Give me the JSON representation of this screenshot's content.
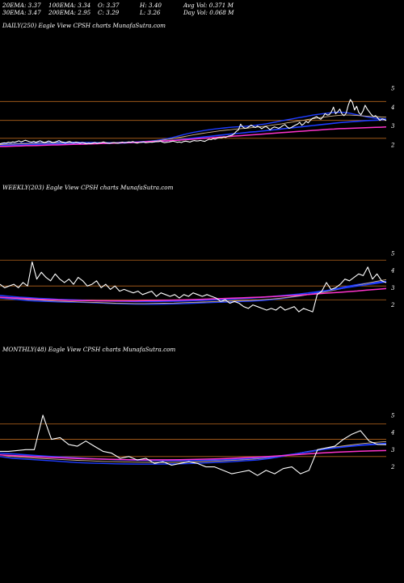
{
  "header": {
    "ema20": "20EMA: 3.37",
    "ema100": "100EMA: 3.34",
    "open": "O: 3.37",
    "high": "H: 3.40",
    "avg_vol": "Avg Vol: 0.371 M",
    "ema30": "30EMA: 3.47",
    "ema200": "200EMA: 2.95",
    "close": "C: 3.29",
    "low": "L: 3.26",
    "day_vol": "Day Vol: 0.068 M"
  },
  "panels": [
    {
      "title": "DAILY(250) Eagle   View  CPSH charts MunafaSutra.com"
    },
    {
      "title": "WEEKLY(203) Eagle   View  CPSH charts MunafaSutra.com"
    },
    {
      "title": "MONTHLY(48) Eagle   View  CPSH charts MunafaSutra.com"
    }
  ],
  "colors": {
    "background": "#000000",
    "price": "#ffffff",
    "grid_lines": "#b5651d",
    "ema_fast": "#1e3cff",
    "ema_200": "#ff33cc",
    "ema_mid": "#d2b48c"
  },
  "chart_data": [
    {
      "type": "line",
      "title": "DAILY(250) Eagle   View  CPSH charts MunafaSutra.com",
      "yticks": [
        "5",
        "4",
        "3",
        "2"
      ],
      "ylim": [
        1.1,
        5.6
      ],
      "reference_levels": [
        4.3,
        3.3,
        2.35
      ],
      "x_count": 100,
      "series": [
        {
          "role": "price",
          "values": [
            2.06,
            2.09,
            2.11,
            2.1,
            2.14,
            2.12,
            2.16,
            2.14,
            2.18,
            2.22,
            2.16,
            2.2,
            2.25,
            2.21,
            2.17,
            2.15,
            2.19,
            2.14,
            2.18,
            2.22,
            2.17,
            2.13,
            2.16,
            2.21,
            2.18,
            2.12,
            2.15,
            2.19,
            2.23,
            2.17,
            2.14,
            2.1,
            2.16,
            2.18,
            2.13,
            2.11,
            2.15,
            2.12,
            2.09,
            2.13,
            2.1,
            2.06,
            2.09,
            2.07,
            2.1,
            2.13,
            2.08,
            2.11,
            2.12,
            2.16,
            2.12,
            2.1,
            2.08,
            2.11,
            2.13,
            2.1,
            2.09,
            2.12,
            2.15,
            2.11,
            2.13,
            2.16,
            2.14,
            2.18,
            2.12,
            2.1,
            2.13,
            2.14,
            2.16,
            2.12,
            2.13,
            2.15,
            2.14,
            2.16,
            2.18,
            2.17,
            2.2,
            2.15,
            2.12,
            2.14,
            2.15,
            2.18,
            2.2,
            2.17,
            2.14,
            2.16,
            2.13,
            2.18,
            2.2,
            2.18,
            2.15,
            2.2,
            2.23,
            2.21,
            2.22,
            2.24,
            2.21,
            2.19,
            2.25,
            2.3,
            2.28,
            2.33,
            2.31,
            2.36,
            2.39,
            2.38,
            2.42,
            2.4,
            2.46,
            2.49,
            2.52,
            2.6,
            2.72,
            2.8,
            3.1,
            2.95,
            2.88,
            2.9,
            2.97,
            3.05,
            2.98,
            2.92,
            3.0,
            2.94,
            2.86,
            2.93,
            2.98,
            2.9,
            2.8,
            2.9,
            2.95,
            2.92,
            2.88,
            2.94,
            3.02,
            3.08,
            2.96,
            2.88,
            2.92,
            2.99,
            3.05,
            3.1,
            3.2,
            3.04,
            3.12,
            3.25,
            3.17,
            3.3,
            3.4,
            3.45,
            3.5,
            3.42,
            3.36,
            3.48,
            3.66,
            3.58,
            3.6,
            3.75,
            4.0,
            3.65,
            3.75,
            3.9,
            3.65,
            3.55,
            3.68,
            4.1,
            4.4,
            4.25,
            3.85,
            4.05,
            3.72,
            3.6,
            3.8,
            4.1,
            3.9,
            3.75,
            3.6,
            3.5,
            3.55,
            3.42,
            3.3,
            3.38,
            3.35,
            3.29
          ]
        },
        {
          "role": "ema20",
          "values": [
            2.04,
            2.05,
            2.06,
            2.07,
            2.08,
            2.09,
            2.1,
            2.11,
            2.12,
            2.13,
            2.13,
            2.14,
            2.14,
            2.14,
            2.14,
            2.14,
            2.13,
            2.13,
            2.13,
            2.12,
            2.12,
            2.12,
            2.12,
            2.13,
            2.14,
            2.15,
            2.16,
            2.17,
            2.19,
            2.21,
            2.24,
            2.28,
            2.33,
            2.39,
            2.46,
            2.53,
            2.6,
            2.66,
            2.71,
            2.76,
            2.8,
            2.84,
            2.87,
            2.9,
            2.93,
            2.95,
            2.97,
            2.99,
            3.01,
            3.04,
            3.08,
            3.12,
            3.17,
            3.22,
            3.28,
            3.33,
            3.38,
            3.43,
            3.48,
            3.53,
            3.58,
            3.62,
            3.66,
            3.69,
            3.72,
            3.73,
            3.72,
            3.68,
            3.62,
            3.56,
            3.5,
            3.45,
            3.41,
            3.39,
            3.37
          ]
        },
        {
          "role": "ema30",
          "values": [
            2.02,
            2.03,
            2.04,
            2.05,
            2.06,
            2.07,
            2.08,
            2.09,
            2.1,
            2.1,
            2.11,
            2.11,
            2.11,
            2.11,
            2.11,
            2.11,
            2.11,
            2.11,
            2.11,
            2.11,
            2.11,
            2.11,
            2.12,
            2.12,
            2.13,
            2.14,
            2.15,
            2.16,
            2.18,
            2.2,
            2.22,
            2.25,
            2.29,
            2.33,
            2.38,
            2.43,
            2.48,
            2.53,
            2.58,
            2.62,
            2.66,
            2.7,
            2.74,
            2.77,
            2.8,
            2.83,
            2.86,
            2.88,
            2.91,
            2.94,
            2.97,
            3.0,
            3.04,
            3.08,
            3.12,
            3.17,
            3.21,
            3.26,
            3.3,
            3.35,
            3.39,
            3.43,
            3.47,
            3.51,
            3.54,
            3.57,
            3.58,
            3.58,
            3.57,
            3.55,
            3.53,
            3.51,
            3.5,
            3.48,
            3.47
          ]
        },
        {
          "role": "ema100",
          "values": [
            1.96,
            1.97,
            1.98,
            1.99,
            2.0,
            2.01,
            2.02,
            2.03,
            2.04,
            2.04,
            2.05,
            2.05,
            2.06,
            2.06,
            2.07,
            2.07,
            2.07,
            2.08,
            2.08,
            2.08,
            2.09,
            2.09,
            2.1,
            2.1,
            2.11,
            2.12,
            2.13,
            2.14,
            2.15,
            2.16,
            2.18,
            2.2,
            2.22,
            2.24,
            2.27,
            2.3,
            2.33,
            2.36,
            2.39,
            2.42,
            2.45,
            2.48,
            2.51,
            2.54,
            2.57,
            2.6,
            2.62,
            2.65,
            2.68,
            2.7,
            2.73,
            2.76,
            2.79,
            2.82,
            2.85,
            2.88,
            2.91,
            2.94,
            2.97,
            3.0,
            3.03,
            3.06,
            3.09,
            3.12,
            3.15,
            3.18,
            3.2,
            3.22,
            3.24,
            3.26,
            3.28,
            3.3,
            3.31,
            3.33,
            3.34
          ]
        },
        {
          "role": "ema200",
          "values": [
            1.92,
            1.92,
            1.93,
            1.94,
            1.95,
            1.96,
            1.96,
            1.97,
            1.98,
            1.99,
            2.0,
            2.0,
            2.01,
            2.02,
            2.03,
            2.04,
            2.04,
            2.05,
            2.06,
            2.07,
            2.08,
            2.09,
            2.1,
            2.11,
            2.12,
            2.13,
            2.14,
            2.15,
            2.17,
            2.18,
            2.19,
            2.21,
            2.22,
            2.24,
            2.25,
            2.27,
            2.29,
            2.31,
            2.33,
            2.35,
            2.37,
            2.39,
            2.41,
            2.43,
            2.45,
            2.47,
            2.49,
            2.51,
            2.53,
            2.55,
            2.57,
            2.59,
            2.61,
            2.63,
            2.65,
            2.67,
            2.69,
            2.71,
            2.73,
            2.75,
            2.77,
            2.79,
            2.81,
            2.83,
            2.84,
            2.86,
            2.87,
            2.88,
            2.89,
            2.9,
            2.91,
            2.92,
            2.93,
            2.94,
            2.95
          ]
        }
      ]
    },
    {
      "type": "line",
      "title": "WEEKLY(203) Eagle   View  CPSH charts MunafaSutra.com",
      "yticks": [
        "5",
        "4",
        "3",
        "2"
      ],
      "ylim": [
        0.9,
        5.6
      ],
      "reference_levels": [
        4.6,
        3.1,
        2.3
      ],
      "series": [
        {
          "role": "price",
          "values": [
            3.2,
            3.0,
            3.1,
            3.2,
            3.0,
            3.3,
            3.1,
            4.5,
            3.5,
            3.9,
            3.6,
            3.4,
            3.8,
            3.5,
            3.3,
            3.5,
            3.2,
            3.6,
            3.4,
            3.1,
            3.2,
            3.4,
            3.0,
            3.2,
            2.9,
            3.1,
            2.8,
            2.9,
            2.8,
            2.7,
            2.8,
            2.6,
            2.7,
            2.8,
            2.5,
            2.7,
            2.6,
            2.5,
            2.6,
            2.4,
            2.6,
            2.5,
            2.7,
            2.6,
            2.5,
            2.6,
            2.5,
            2.4,
            2.2,
            2.3,
            2.1,
            2.2,
            2.1,
            1.9,
            1.8,
            2.0,
            1.9,
            1.8,
            1.7,
            1.8,
            1.7,
            1.9,
            1.7,
            1.8,
            1.9,
            1.6,
            1.8,
            1.7,
            1.6,
            2.6,
            2.8,
            3.3,
            2.9,
            3.0,
            3.2,
            3.5,
            3.4,
            3.6,
            3.8,
            3.7,
            4.2,
            3.5,
            3.8,
            3.4,
            3.29
          ]
        },
        {
          "role": "ema20",
          "values": [
            2.4,
            2.35,
            2.3,
            2.25,
            2.22,
            2.2,
            2.18,
            2.17,
            2.16,
            2.14,
            2.12,
            2.1,
            2.08,
            2.06,
            2.05,
            2.04,
            2.04,
            2.05,
            2.06,
            2.08,
            2.1,
            2.12,
            2.14,
            2.16,
            2.18,
            2.2,
            2.22,
            2.25,
            2.3,
            2.36,
            2.44,
            2.52,
            2.62,
            2.72,
            2.84,
            2.96,
            3.08,
            3.18,
            3.26,
            3.32,
            3.37
          ]
        },
        {
          "role": "ema30",
          "values": [
            2.45,
            2.4,
            2.36,
            2.32,
            2.28,
            2.25,
            2.22,
            2.2,
            2.18,
            2.16,
            2.14,
            2.12,
            2.1,
            2.09,
            2.08,
            2.08,
            2.09,
            2.1,
            2.11,
            2.13,
            2.15,
            2.17,
            2.19,
            2.21,
            2.23,
            2.25,
            2.27,
            2.3,
            2.34,
            2.39,
            2.45,
            2.52,
            2.6,
            2.69,
            2.79,
            2.9,
            3.02,
            3.14,
            3.26,
            3.37,
            3.47
          ]
        },
        {
          "role": "ema100",
          "values": [
            2.55,
            2.5,
            2.45,
            2.42,
            2.38,
            2.35,
            2.32,
            2.3,
            2.28,
            2.26,
            2.24,
            2.23,
            2.22,
            2.21,
            2.2,
            2.2,
            2.2,
            2.21,
            2.22,
            2.23,
            2.25,
            2.27,
            2.29,
            2.31,
            2.34,
            2.37,
            2.4,
            2.44,
            2.48,
            2.53,
            2.58,
            2.63,
            2.7,
            2.77,
            2.85,
            2.93,
            3.02,
            3.1,
            3.18,
            3.26,
            3.34
          ]
        },
        {
          "role": "ema200",
          "values": [
            2.45,
            2.42,
            2.39,
            2.36,
            2.33,
            2.31,
            2.29,
            2.27,
            2.26,
            2.25,
            2.24,
            2.24,
            2.24,
            2.24,
            2.24,
            2.25,
            2.26,
            2.27,
            2.28,
            2.29,
            2.31,
            2.33,
            2.35,
            2.37,
            2.39,
            2.41,
            2.43,
            2.45,
            2.48,
            2.51,
            2.54,
            2.57,
            2.61,
            2.65,
            2.69,
            2.73,
            2.77,
            2.81,
            2.86,
            2.9,
            2.95
          ]
        }
      ]
    },
    {
      "type": "line",
      "title": "MONTHLY(48) Eagle   View  CPSH charts MunafaSutra.com",
      "yticks": [
        "5",
        "4",
        "3",
        "2"
      ],
      "ylim": [
        0.9,
        5.6
      ],
      "reference_levels": [
        4.5,
        3.6,
        2.6
      ],
      "series": [
        {
          "role": "price",
          "values": [
            2.9,
            2.9,
            2.95,
            3.0,
            3.0,
            5.0,
            3.6,
            3.7,
            3.3,
            3.2,
            3.5,
            3.2,
            2.9,
            2.8,
            2.5,
            2.6,
            2.4,
            2.5,
            2.2,
            2.3,
            2.1,
            2.2,
            2.3,
            2.2,
            2.0,
            2.0,
            1.8,
            1.6,
            1.7,
            1.8,
            1.5,
            1.8,
            1.6,
            1.9,
            2.0,
            1.6,
            1.8,
            3.0,
            3.1,
            3.2,
            3.6,
            3.9,
            4.1,
            3.5,
            3.3,
            3.29
          ]
        },
        {
          "role": "ema20",
          "values": [
            2.6,
            2.5,
            2.45,
            2.4,
            2.35,
            2.3,
            2.25,
            2.22,
            2.2,
            2.18,
            2.17,
            2.16,
            2.16,
            2.17,
            2.18,
            2.2,
            2.23,
            2.26,
            2.3,
            2.35,
            2.4,
            2.5,
            2.62,
            2.76,
            2.9,
            3.02,
            3.12,
            3.2,
            3.27,
            3.32,
            3.37
          ]
        },
        {
          "role": "ema30",
          "values": [
            2.7,
            2.6,
            2.55,
            2.5,
            2.46,
            2.42,
            2.38,
            2.35,
            2.32,
            2.3,
            2.28,
            2.27,
            2.26,
            2.26,
            2.27,
            2.29,
            2.31,
            2.34,
            2.38,
            2.42,
            2.47,
            2.55,
            2.65,
            2.77,
            2.9,
            3.03,
            3.15,
            3.25,
            3.34,
            3.41,
            3.47
          ]
        },
        {
          "role": "ema100",
          "values": [
            2.8,
            2.75,
            2.7,
            2.65,
            2.6,
            2.56,
            2.52,
            2.48,
            2.45,
            2.42,
            2.4,
            2.38,
            2.37,
            2.36,
            2.36,
            2.37,
            2.38,
            2.4,
            2.43,
            2.47,
            2.52,
            2.58,
            2.66,
            2.76,
            2.88,
            3.0,
            3.1,
            3.18,
            3.25,
            3.3,
            3.34
          ]
        },
        {
          "role": "ema200",
          "values": [
            2.7,
            2.66,
            2.62,
            2.58,
            2.55,
            2.52,
            2.49,
            2.47,
            2.45,
            2.43,
            2.42,
            2.41,
            2.41,
            2.41,
            2.42,
            2.43,
            2.45,
            2.47,
            2.5,
            2.53,
            2.57,
            2.61,
            2.66,
            2.71,
            2.76,
            2.81,
            2.85,
            2.88,
            2.91,
            2.93,
            2.95
          ]
        }
      ]
    }
  ]
}
